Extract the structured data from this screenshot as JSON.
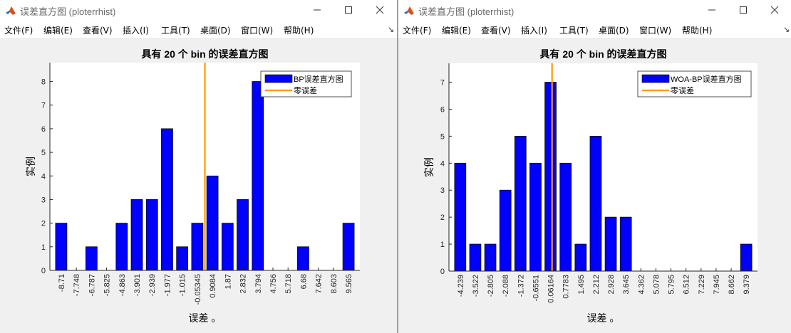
{
  "windows": [
    {
      "title": "误差直方图 (ploterrhist)",
      "menu": [
        "文件(F)",
        "编辑(E)",
        "查看(V)",
        "插入(I)",
        "工具(T)",
        "桌面(D)",
        "窗口(W)",
        "帮助(H)"
      ],
      "dock_glyph": "↘"
    },
    {
      "title": "误差直方图 (ploterrhist)",
      "menu": [
        "文件(F)",
        "编辑(E)",
        "查看(V)",
        "插入(I)",
        "工具(T)",
        "桌面(D)",
        "窗口(W)",
        "帮助(H)"
      ],
      "dock_glyph": "↘"
    }
  ],
  "chart_data": [
    {
      "type": "bar",
      "title": "具有 20 个 bin 的误差直方图",
      "xlabel": "误差 。",
      "ylabel": "实例",
      "categories": [
        "-8.71",
        "-7.748",
        "-6.787",
        "-5.825",
        "-4.863",
        "-3.901",
        "-2.939",
        "-1.977",
        "-1.015",
        "-0.05345",
        "0.9084",
        "1.87",
        "2.832",
        "3.794",
        "4.756",
        "5.718",
        "6.68",
        "7.642",
        "8.603",
        "9.565"
      ],
      "values": [
        2,
        0,
        1,
        0,
        2,
        3,
        3,
        6,
        1,
        2,
        4,
        2,
        3,
        8,
        0,
        0,
        1,
        0,
        0,
        2
      ],
      "yticks": [
        0,
        1,
        2,
        3,
        4,
        5,
        6,
        7,
        8
      ],
      "ylim": [
        0,
        8.8
      ],
      "zero_error_at": 9.5,
      "legend": {
        "placement": "top-right",
        "bar_label": "BP误差直方图",
        "line_label": "零误差"
      },
      "colors": {
        "bar": "#0000ff",
        "zero_line": "#ff9900"
      }
    },
    {
      "type": "bar",
      "title": "具有 20 个 bin 的误差直方图",
      "xlabel": "误差 。",
      "ylabel": "实例",
      "categories": [
        "-4.239",
        "-3.522",
        "-2.805",
        "-2.088",
        "-1.372",
        "-0.6551",
        "0.06164",
        "0.7783",
        "1.495",
        "2.212",
        "2.928",
        "3.645",
        "4.362",
        "5.078",
        "5.795",
        "6.512",
        "7.229",
        "7.945",
        "8.662",
        "9.379"
      ],
      "values": [
        4,
        1,
        1,
        3,
        5,
        4,
        7,
        4,
        1,
        5,
        2,
        2,
        0,
        0,
        0,
        0,
        0,
        0,
        0,
        1
      ],
      "yticks": [
        0,
        1,
        2,
        3,
        4,
        5,
        6,
        7
      ],
      "ylim": [
        0,
        7.7
      ],
      "zero_error_at": 6.1,
      "legend": {
        "placement": "top-right",
        "bar_label": "WOA-BP误差直方图",
        "line_label": "零误差"
      },
      "colors": {
        "bar": "#0000ff",
        "zero_line": "#ff9900"
      }
    }
  ]
}
